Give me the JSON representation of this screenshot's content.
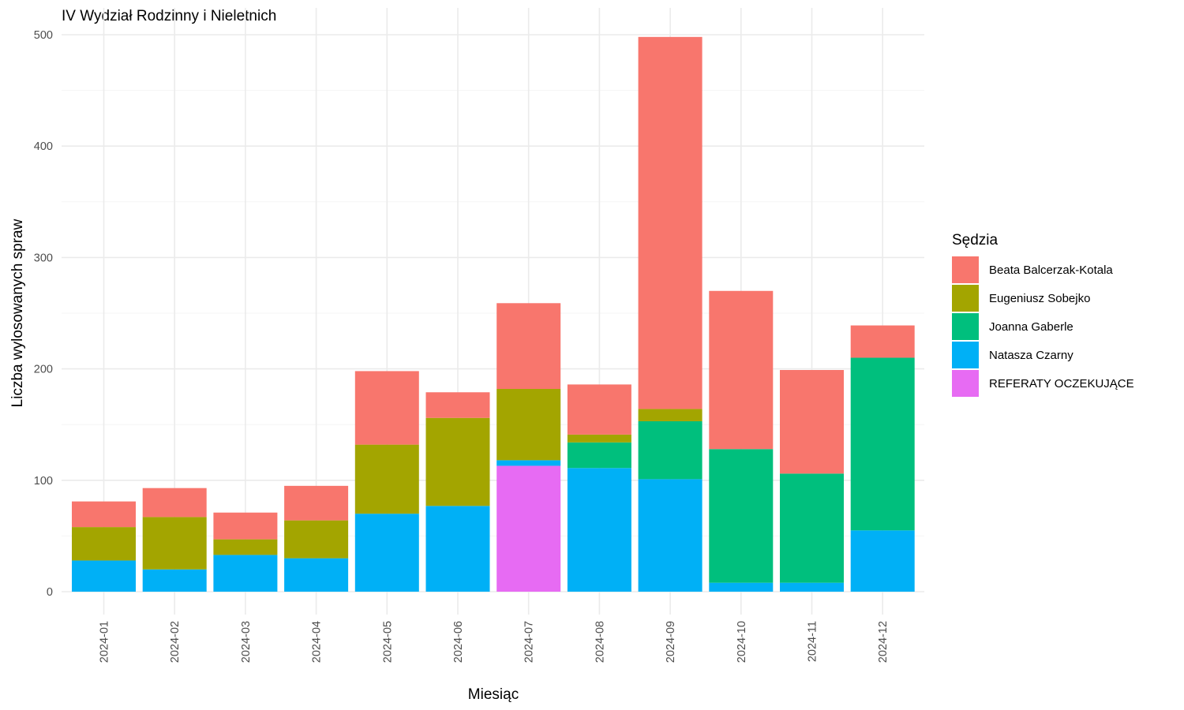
{
  "chart_data": {
    "type": "bar",
    "stacked": true,
    "title": "IV Wydział Rodzinny i Nieletnich",
    "xlabel": "Miesiąc",
    "ylabel": "Liczba wylosowanych spraw",
    "ylim": [
      0,
      500
    ],
    "y_ticks": [
      0,
      100,
      200,
      300,
      400,
      500
    ],
    "grid": true,
    "legend": {
      "title": "Sędzia",
      "position": "right"
    },
    "categories": [
      "2024-01",
      "2024-02",
      "2024-03",
      "2024-04",
      "2024-05",
      "2024-06",
      "2024-07",
      "2024-08",
      "2024-09",
      "2024-10",
      "2024-11",
      "2024-12"
    ],
    "series": [
      {
        "name": "Beata Balcerzak-Kotala",
        "color": "#F8766D",
        "values": [
          23,
          26,
          24,
          31,
          66,
          23,
          77,
          45,
          334,
          142,
          93,
          29
        ]
      },
      {
        "name": "Eugeniusz Sobejko",
        "color": "#A3A500",
        "values": [
          30,
          47,
          14,
          34,
          62,
          79,
          64,
          7,
          11,
          0,
          0,
          0
        ]
      },
      {
        "name": "Joanna Gaberle",
        "color": "#00BF7D",
        "values": [
          0,
          0,
          0,
          0,
          0,
          0,
          0,
          23,
          52,
          120,
          98,
          155
        ]
      },
      {
        "name": "Natasza Czarny",
        "color": "#00B0F6",
        "values": [
          28,
          20,
          33,
          30,
          70,
          77,
          5,
          111,
          101,
          8,
          8,
          55
        ]
      },
      {
        "name": "REFERATY OCZEKUJĄCE",
        "color": "#E76BF3",
        "values": [
          0,
          0,
          0,
          0,
          0,
          0,
          113,
          0,
          0,
          0,
          0,
          0
        ]
      }
    ]
  }
}
